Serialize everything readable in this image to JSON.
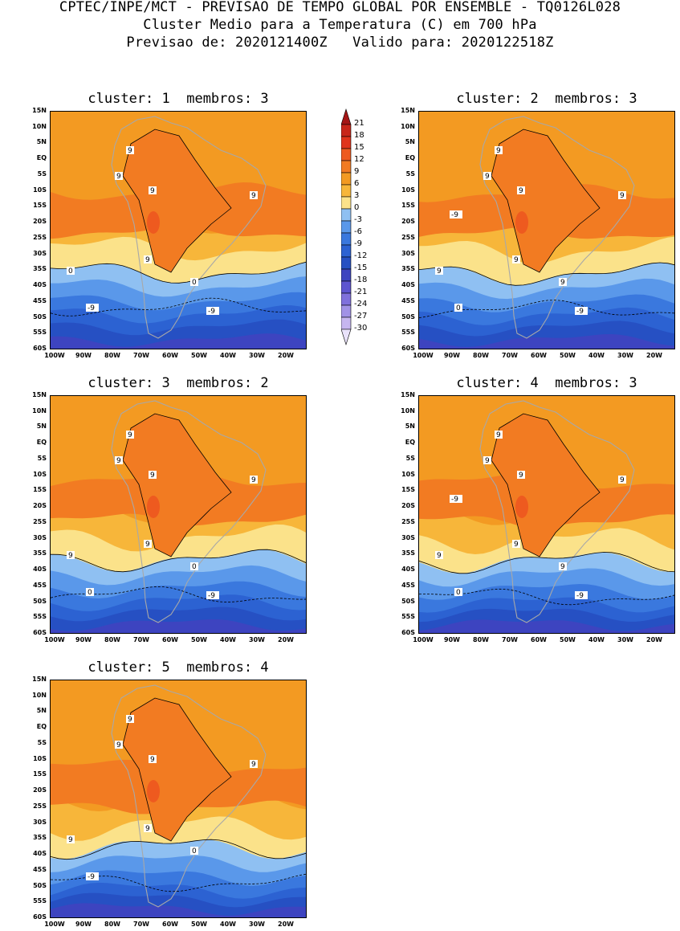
{
  "header": {
    "line1": "CPTEC/INPE/MCT - PREVISAO DE TEMPO GLOBAL POR ENSEMBLE - TQ0126L028",
    "line2": "Cluster Medio para a Temperatura (C) em 700 hPa",
    "line3": "Previsao de: 2020121400Z   Valido para: 2020122518Z"
  },
  "panels": [
    {
      "title": "cluster: 1  membros: 3"
    },
    {
      "title": "cluster: 2  membros: 3"
    },
    {
      "title": "cluster: 3  membros: 2"
    },
    {
      "title": "cluster: 4  membros: 3"
    },
    {
      "title": "cluster: 5  membros: 4"
    }
  ],
  "lat_ticks": [
    "15N",
    "10N",
    "5N",
    "EQ",
    "5S",
    "10S",
    "15S",
    "20S",
    "25S",
    "30S",
    "35S",
    "40S",
    "45S",
    "50S",
    "55S",
    "60S"
  ],
  "lon_ticks": [
    "100W",
    "90W",
    "80W",
    "70W",
    "60W",
    "50W",
    "40W",
    "30W",
    "20W"
  ],
  "colorbar": {
    "labels": [
      "21",
      "18",
      "15",
      "12",
      "9",
      "6",
      "3",
      "0",
      "-3",
      "-6",
      "-9",
      "-12",
      "-15",
      "-18",
      "-21",
      "-24",
      "-27",
      "-30"
    ],
    "colors": [
      "#a51616",
      "#c8261a",
      "#e0341c",
      "#ee5a1f",
      "#f27b22",
      "#f39a22",
      "#f7b63a",
      "#fbe28a",
      "#8fc0f2",
      "#5a98ea",
      "#3a78de",
      "#2c62d2",
      "#2650c3",
      "#3d44c0",
      "#5d54d0",
      "#7f70dc",
      "#a192e6",
      "#c6b6f0",
      "#e9e2fb"
    ]
  },
  "contour_labels": {
    "c1": [
      "9",
      "9",
      "9",
      "9",
      "9",
      "0",
      "0",
      "-9",
      "-9"
    ],
    "c2": [
      "9",
      "9",
      "9",
      "9",
      "9",
      "9",
      "9",
      "0",
      "-9",
      "-9"
    ],
    "c3": [
      "9",
      "9",
      "9",
      "9",
      "9",
      "9",
      "0",
      "0",
      "-9"
    ],
    "c4": [
      "9",
      "9",
      "9",
      "9",
      "9",
      "9",
      "9",
      "0",
      "-9",
      "-9"
    ],
    "c5": [
      "9",
      "9",
      "9",
      "9",
      "9",
      "9",
      "0",
      "-9"
    ]
  },
  "chart_data": {
    "type": "heatmap",
    "title": "Cluster Medio para a Temperatura (C) em 700 hPa",
    "variable": "Temperature (C) at 700 hPa",
    "x_range": [
      "100W",
      "15W"
    ],
    "y_range": [
      "60S",
      "15N"
    ],
    "levels": [
      -30,
      -27,
      -24,
      -21,
      -18,
      -15,
      -12,
      -9,
      -6,
      -3,
      0,
      3,
      6,
      9,
      12,
      15,
      18,
      21
    ],
    "clusters": [
      {
        "cluster": 1,
        "members": 3
      },
      {
        "cluster": 2,
        "members": 3
      },
      {
        "cluster": 3,
        "members": 2
      },
      {
        "cluster": 4,
        "members": 3
      },
      {
        "cluster": 5,
        "members": 4
      }
    ]
  }
}
